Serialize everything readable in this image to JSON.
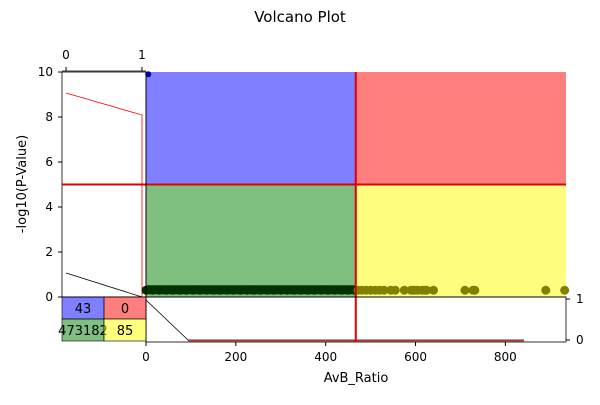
{
  "chart_data": {
    "type": "scatter",
    "title": "Volcano Plot",
    "xlabel": "AvB_Ratio",
    "ylabel": "-log10(P-Value)",
    "xlim": [
      0,
      935
    ],
    "ylim": [
      0,
      10
    ],
    "x_ticks": [
      0,
      200,
      400,
      600,
      800
    ],
    "y_ticks": [
      0,
      2,
      4,
      6,
      8,
      10
    ],
    "thresholds": {
      "x": 467,
      "y": 5
    },
    "quadrants": [
      {
        "name": "upper-left",
        "color": "#0000ff"
      },
      {
        "name": "upper-right",
        "color": "#ff0000"
      },
      {
        "name": "lower-left",
        "color": "#008000"
      },
      {
        "name": "lower-right",
        "color": "#ffff00"
      }
    ],
    "counts": [
      {
        "label": "43",
        "color": "#0000ff"
      },
      {
        "label": "0",
        "color": "#ff0000"
      },
      {
        "label": "473182",
        "color": "#008000"
      },
      {
        "label": "85",
        "color": "#ffff00"
      }
    ],
    "series": [
      {
        "color": "#003300",
        "points_band": {
          "x_from": 0,
          "x_to": 465,
          "y": 0.3
        },
        "points": [
          [
            5,
            9.9
          ]
        ]
      },
      {
        "color": "#808000",
        "points": [
          [
            472,
            0.3
          ],
          [
            480,
            0.3
          ],
          [
            490,
            0.3
          ],
          [
            500,
            0.3
          ],
          [
            510,
            0.3
          ],
          [
            520,
            0.3
          ],
          [
            530,
            0.3
          ],
          [
            545,
            0.3
          ],
          [
            555,
            0.3
          ],
          [
            575,
            0.3
          ],
          [
            590,
            0.3
          ],
          [
            595,
            0.3
          ],
          [
            600,
            0.3
          ],
          [
            605,
            0.3
          ],
          [
            615,
            0.3
          ],
          [
            620,
            0.3
          ],
          [
            625,
            0.3
          ],
          [
            640,
            0.3
          ],
          [
            710,
            0.3
          ],
          [
            728,
            0.3
          ],
          [
            732,
            0.3
          ],
          [
            890,
            0.3
          ],
          [
            932,
            0.3
          ]
        ]
      }
    ],
    "top_inset": {
      "ticks": [
        "0",
        "1"
      ],
      "xlim": [
        0,
        1
      ]
    },
    "right_inset": {
      "ticks": [
        "0",
        "1"
      ]
    },
    "grid": false
  }
}
